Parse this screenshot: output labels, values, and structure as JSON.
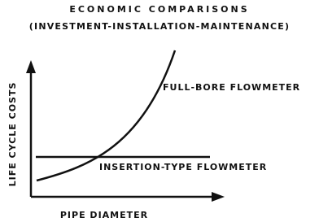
{
  "title": {
    "line1": "ECONOMIC COMPARISONS",
    "line2": "(INVESTMENT-INSTALLATION-MAINTENANCE)"
  },
  "axes": {
    "y_label": "LIFE CYCLE COSTS",
    "x_label": "PIPE DIAMETER"
  },
  "curves": [
    {
      "label": "FULL-BORE FLOWMETER"
    },
    {
      "label": "INSERTION-TYPE FLOWMETER"
    }
  ]
}
